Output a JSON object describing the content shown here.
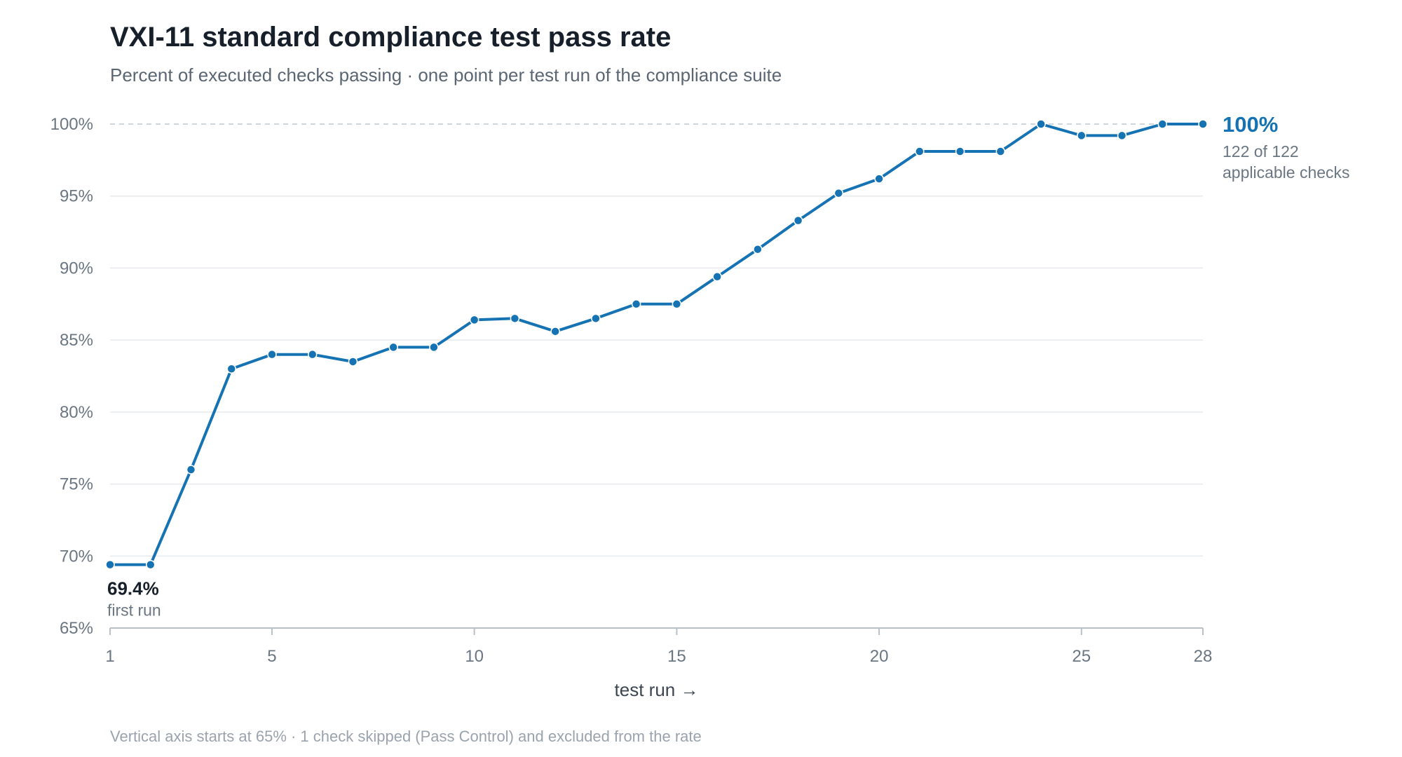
{
  "chart_data": {
    "type": "line",
    "title": "VXI-11 standard compliance test pass rate",
    "subtitle": "Percent of executed checks passing · one point per test run of the compliance suite",
    "xlabel": "test run →",
    "ylabel": "",
    "xlim": [
      1,
      28
    ],
    "ylim": [
      65,
      100
    ],
    "x_ticks": [
      1,
      5,
      10,
      15,
      20,
      25,
      28
    ],
    "y_ticks": [
      65,
      70,
      75,
      80,
      85,
      90,
      95,
      100
    ],
    "y_tick_labels": [
      "65%",
      "70%",
      "75%",
      "80%",
      "85%",
      "90%",
      "95%",
      "100%"
    ],
    "grid": "horizontal",
    "reference_line": 100,
    "color": "#1573b4",
    "x": [
      1,
      2,
      3,
      4,
      5,
      6,
      7,
      8,
      9,
      10,
      11,
      12,
      13,
      14,
      15,
      16,
      17,
      18,
      19,
      20,
      21,
      22,
      23,
      24,
      25,
      26,
      27,
      28
    ],
    "values": [
      69.4,
      69.4,
      76.0,
      83.0,
      84.0,
      84.0,
      83.5,
      84.5,
      84.5,
      86.4,
      86.5,
      85.6,
      86.5,
      87.5,
      87.5,
      89.4,
      91.3,
      93.3,
      95.2,
      96.2,
      98.1,
      98.1,
      98.1,
      100,
      99.2,
      99.2,
      100,
      100
    ],
    "annotations": {
      "end_value": "100%",
      "end_line1": "122 of 122",
      "end_line2": "applicable checks",
      "start_value": "69.4%",
      "start_label": "first run"
    },
    "footnote": "Vertical axis starts at 65% · 1 check skipped (Pass Control) and excluded from the rate"
  }
}
